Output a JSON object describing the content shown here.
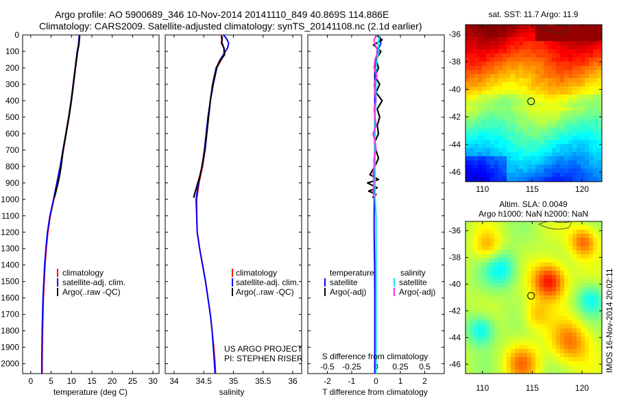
{
  "header": {
    "title_line1": "Argo profile: AO 5900689_346 10-Nov-2014 20141110_849 40.869S 114.886E",
    "title_line2": "Climatology: CARS2009. Satellite-adjusted climatology: synTS_20141108.nc (2.1d earlier)"
  },
  "side_stamp": "IMOS 16-Nov-2014 20:02:11",
  "credit": {
    "line1": "US ARGO PROJECT",
    "line2": "PI: STEPHEN RISER"
  },
  "colors": {
    "climatology": "#ff0000",
    "satellite": "#0000ff",
    "argo": "#000000",
    "satellite_salinity": "#00e5ee",
    "argo_salinity": "#ff33dd"
  },
  "chart_data": [
    {
      "id": "temperature-profile",
      "type": "line",
      "xlabel": "temperature (deg C)",
      "xticks": [
        "0",
        "5",
        "10",
        "15",
        "20",
        "25",
        "30"
      ],
      "xlim": [
        -2,
        31.5
      ],
      "ylim": [
        2060,
        0
      ],
      "yticks": [
        0,
        100,
        200,
        300,
        400,
        500,
        600,
        700,
        800,
        900,
        1000,
        1100,
        1200,
        1300,
        1400,
        1500,
        1600,
        1700,
        1800,
        1900,
        2000
      ],
      "legend": [
        "climatology",
        "satellite-adj. clim.",
        "Argo(..raw -QC)"
      ],
      "series": [
        {
          "name": "climatology",
          "y": [
            0,
            30,
            60,
            100,
            200,
            300,
            400,
            500,
            600,
            700,
            800,
            900,
            1000,
            1100,
            1200,
            1300,
            1400,
            1500,
            1600,
            1700,
            1800,
            1900,
            2000,
            2060
          ],
          "x": [
            12.0,
            11.9,
            11.8,
            11.5,
            11.0,
            10.5,
            10.0,
            9.4,
            8.7,
            8.0,
            7.3,
            6.5,
            5.7,
            4.8,
            4.2,
            3.8,
            3.5,
            3.3,
            3.1,
            3.0,
            2.9,
            2.85,
            2.8,
            2.8
          ]
        },
        {
          "name": "satellite-adj. clim.",
          "y": [
            0,
            30,
            60,
            100,
            200,
            300,
            400,
            500,
            600,
            700,
            800,
            900,
            1000,
            1100,
            1200,
            1300,
            1400,
            1500,
            1600,
            1700,
            1800,
            1900,
            2000,
            2060
          ],
          "x": [
            11.9,
            11.8,
            11.7,
            11.4,
            10.9,
            10.4,
            9.9,
            9.3,
            8.6,
            7.9,
            7.2,
            6.4,
            5.6,
            4.7,
            4.1,
            3.7,
            3.4,
            3.2,
            3.0,
            2.9,
            2.8,
            2.75,
            2.7,
            2.7
          ]
        },
        {
          "name": "Argo(..raw -QC)",
          "y": [
            5,
            30,
            60,
            100,
            200,
            300,
            400,
            500,
            600,
            700,
            800,
            850,
            900,
            950,
            990
          ],
          "x": [
            12.0,
            11.9,
            11.8,
            11.5,
            10.95,
            10.45,
            9.95,
            9.35,
            8.65,
            7.95,
            7.45,
            7.1,
            6.7,
            6.2,
            5.8
          ]
        }
      ]
    },
    {
      "id": "salinity-profile",
      "type": "line",
      "xlabel": "salinity",
      "xticks": [
        "34",
        "34.5",
        "35",
        "35.5",
        "36"
      ],
      "xlim": [
        33.85,
        36.15
      ],
      "ylim": [
        2060,
        0
      ],
      "legend": [
        "climatology",
        "satellite-adj. clim.",
        "Argo(..raw -QC)"
      ],
      "series": [
        {
          "name": "climatology",
          "y": [
            0,
            20,
            50,
            80,
            120,
            160,
            200,
            300,
            400,
            500,
            600,
            700,
            800,
            900,
            1000,
            1100,
            1200,
            1300,
            1400,
            1500,
            1600,
            1700,
            1800,
            1900,
            2000,
            2060
          ],
          "x": [
            34.8,
            34.8,
            34.81,
            34.84,
            34.84,
            34.78,
            34.72,
            34.66,
            34.61,
            34.58,
            34.55,
            34.52,
            34.48,
            34.42,
            34.38,
            34.38,
            34.39,
            34.43,
            34.48,
            34.53,
            34.57,
            34.61,
            34.64,
            34.67,
            34.69,
            34.7
          ]
        },
        {
          "name": "satellite-adj. clim.",
          "y": [
            0,
            20,
            50,
            80,
            120,
            160,
            200,
            300,
            400,
            500,
            600,
            700,
            800,
            900,
            1000,
            1100,
            1200,
            1300,
            1400,
            1500,
            1600,
            1700,
            1800,
            1900,
            2000,
            2060
          ],
          "x": [
            34.83,
            34.88,
            34.92,
            34.9,
            34.83,
            34.76,
            34.72,
            34.66,
            34.61,
            34.57,
            34.54,
            34.51,
            34.47,
            34.41,
            34.37,
            34.38,
            34.39,
            34.43,
            34.48,
            34.53,
            34.57,
            34.61,
            34.64,
            34.66,
            34.68,
            34.69
          ]
        },
        {
          "name": "Argo(..raw -QC)",
          "y": [
            5,
            20,
            50,
            80,
            120,
            160,
            200,
            300,
            400,
            500,
            600,
            700,
            800,
            850,
            900,
            950,
            990
          ],
          "x": [
            34.8,
            34.81,
            34.8,
            34.84,
            34.85,
            34.77,
            34.71,
            34.65,
            34.61,
            34.58,
            34.55,
            34.52,
            34.47,
            34.44,
            34.4,
            34.36,
            34.33
          ]
        }
      ]
    },
    {
      "id": "difference-profile",
      "type": "line",
      "xlabel": "T difference from climatology",
      "xlabel_top": "S difference from climatology",
      "xticks": [
        "-2",
        "-1",
        "0",
        "1",
        "2"
      ],
      "xticks_top": [
        "-0.5",
        "-0.25",
        "0",
        "0.25",
        "0.5"
      ],
      "xlim": [
        -2.8,
        2.8
      ],
      "s_xlim": [
        -0.7,
        0.7
      ],
      "ylim": [
        2060,
        0
      ],
      "legend_group_headers": [
        "temperature",
        "salinity"
      ],
      "legend": [
        "satellite",
        "Argo(-adj)",
        "satellite",
        "Argo(-adj)"
      ],
      "series": [
        {
          "name": "T satellite",
          "kind": "T",
          "y": [
            0,
            50,
            100,
            200,
            300,
            400,
            500,
            600,
            700,
            800,
            900,
            1000,
            1100,
            1200,
            1400,
            1600,
            1800,
            2000,
            2060
          ],
          "x": [
            0.15,
            0.2,
            0.05,
            -0.05,
            -0.05,
            -0.05,
            -0.05,
            -0.05,
            -0.05,
            -0.06,
            -0.06,
            -0.07,
            -0.08,
            -0.08,
            -0.06,
            -0.05,
            -0.05,
            -0.05,
            -0.05
          ]
        },
        {
          "name": "T Argo(-adj)",
          "kind": "T",
          "y": [
            5,
            30,
            60,
            100,
            150,
            200,
            250,
            300,
            350,
            400,
            450,
            500,
            550,
            600,
            650,
            700,
            750,
            800,
            850,
            880,
            900,
            930,
            950,
            970,
            990
          ],
          "x": [
            0.05,
            0.25,
            -0.1,
            0.2,
            0.0,
            0.1,
            -0.05,
            0.15,
            0.0,
            0.25,
            0.05,
            0.15,
            0.05,
            0.1,
            -0.05,
            0.0,
            0.1,
            -0.05,
            -0.25,
            0.1,
            -0.35,
            0.05,
            -0.3,
            0.0,
            -0.15
          ]
        },
        {
          "name": "S satellite",
          "kind": "S",
          "y": [
            0,
            50,
            100,
            150,
            200,
            300,
            400,
            500,
            600,
            700,
            800,
            900,
            1000,
            1100,
            1200,
            1400,
            1600,
            1800,
            2000,
            2060
          ],
          "x": [
            0.04,
            0.02,
            0.03,
            0.01,
            0.0,
            0.0,
            0.0,
            -0.01,
            -0.01,
            -0.01,
            -0.01,
            -0.01,
            -0.01,
            0.0,
            0.0,
            0.0,
            0.0,
            0.0,
            0.0,
            0.0
          ]
        },
        {
          "name": "S Argo(-adj)",
          "kind": "S",
          "y": [
            5,
            30,
            60,
            100,
            150,
            200,
            250,
            300,
            350,
            400,
            450,
            500,
            550,
            600,
            650,
            700,
            750,
            800,
            850,
            900,
            950,
            990
          ],
          "x": [
            0.0,
            -0.02,
            -0.01,
            0.02,
            -0.01,
            -0.02,
            0.01,
            -0.02,
            -0.01,
            0.0,
            -0.02,
            -0.01,
            0.0,
            -0.03,
            -0.01,
            0.0,
            -0.02,
            -0.02,
            -0.03,
            -0.02,
            -0.03,
            -0.02
          ]
        }
      ]
    },
    {
      "id": "sst-map",
      "type": "heatmap",
      "title": "sat. SST: 11.7 Argo: 11.9",
      "xticks": [
        "110",
        "115",
        "120"
      ],
      "yticks": [
        "-36",
        "-38",
        "-40",
        "-42",
        "-44",
        "-46"
      ],
      "xlim": [
        108.3,
        122.0
      ],
      "ylim": [
        -46.7,
        -35.3
      ],
      "marker": {
        "lon": 114.886,
        "lat": -40.869
      },
      "colormap": "jet"
    },
    {
      "id": "sla-map",
      "type": "heatmap",
      "title_line1": "Altim. SLA: 0.0049",
      "title_line2": "Argo h1000: NaN h2000: NaN",
      "xticks": [
        "110",
        "115",
        "120"
      ],
      "yticks": [
        "-36",
        "-38",
        "-40",
        "-42",
        "-44",
        "-46"
      ],
      "xlim": [
        108.3,
        122.0
      ],
      "ylim": [
        -46.7,
        -35.3
      ],
      "marker": {
        "lon": 114.886,
        "lat": -40.869
      },
      "colormap": "jet"
    }
  ]
}
